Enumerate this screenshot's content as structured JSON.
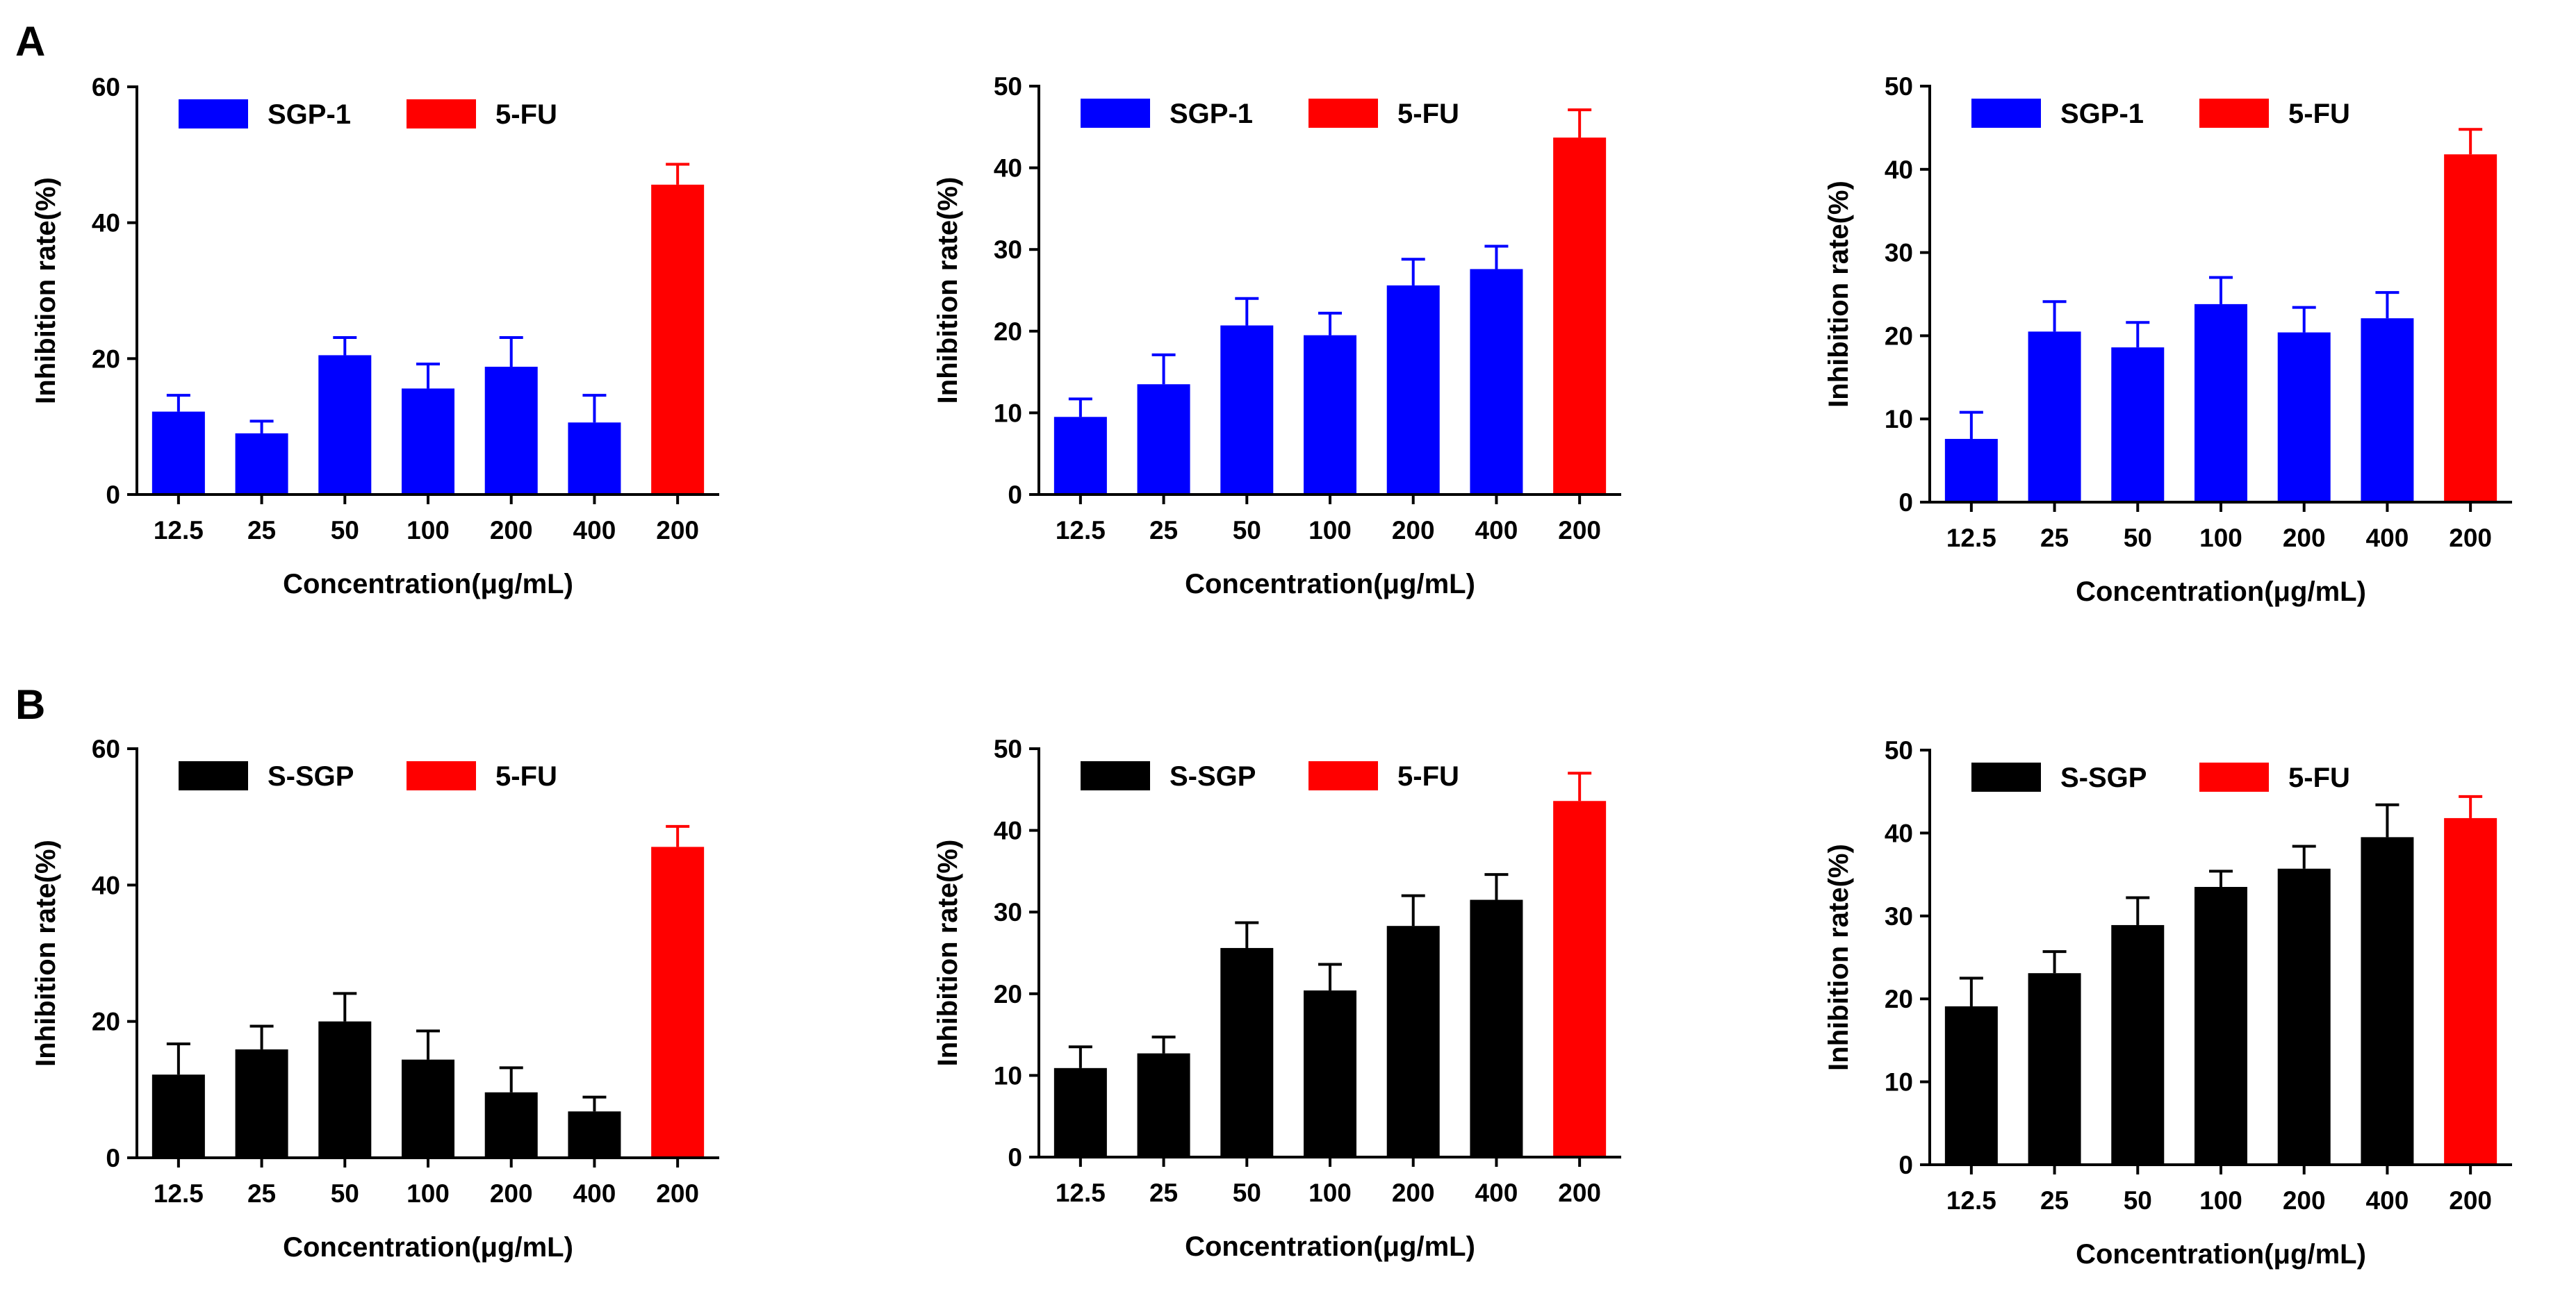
{
  "figure": {
    "panel_labels": [
      "A",
      "B"
    ]
  },
  "colors": {
    "sgp1": "#0000FF",
    "ssgp": "#000000",
    "fu": "#FF0000",
    "axis": "#000000"
  },
  "chart_data": [
    {
      "type": "bar",
      "row": 0,
      "col": 0,
      "categories": [
        "12.5",
        "25",
        "50",
        "100",
        "200",
        "400",
        "200"
      ],
      "series": [
        {
          "name": "SGP-1",
          "values": [
            12.2,
            9.0,
            20.5,
            15.6,
            18.8,
            10.6,
            null
          ],
          "errors": [
            2.4,
            1.8,
            2.6,
            3.6,
            4.3,
            4.0,
            null
          ],
          "color": "#0000FF"
        },
        {
          "name": "5-FU",
          "values": [
            null,
            null,
            null,
            null,
            null,
            null,
            45.6
          ],
          "errors": [
            null,
            null,
            null,
            null,
            null,
            null,
            3.0
          ],
          "color": "#FF0000"
        }
      ],
      "xlabel": "Concentration(μg/mL)",
      "ylabel": "Inhibition rate(%)",
      "ylim": [
        0,
        60
      ],
      "yticks": [
        0,
        20,
        40,
        60
      ],
      "legend": "top-left"
    },
    {
      "type": "bar",
      "row": 0,
      "col": 1,
      "categories": [
        "12.5",
        "25",
        "50",
        "100",
        "200",
        "400",
        "200"
      ],
      "series": [
        {
          "name": "SGP-1",
          "values": [
            9.5,
            13.5,
            20.7,
            19.5,
            25.6,
            27.6,
            null
          ],
          "errors": [
            2.2,
            3.6,
            3.3,
            2.7,
            3.2,
            2.8,
            null
          ],
          "color": "#0000FF"
        },
        {
          "name": "5-FU",
          "values": [
            null,
            null,
            null,
            null,
            null,
            null,
            43.7
          ],
          "errors": [
            null,
            null,
            null,
            null,
            null,
            null,
            3.4
          ],
          "color": "#FF0000"
        }
      ],
      "xlabel": "Concentration(μg/mL)",
      "ylabel": "Inhibition rate(%)",
      "ylim": [
        0,
        50
      ],
      "yticks": [
        0,
        10,
        20,
        30,
        40,
        50
      ],
      "legend": "top-left"
    },
    {
      "type": "bar",
      "row": 0,
      "col": 2,
      "categories": [
        "12.5",
        "25",
        "50",
        "100",
        "200",
        "400",
        "200"
      ],
      "series": [
        {
          "name": "SGP-1",
          "values": [
            7.6,
            20.5,
            18.6,
            23.8,
            20.4,
            22.1,
            null
          ],
          "errors": [
            3.2,
            3.6,
            3.0,
            3.2,
            3.0,
            3.1,
            null
          ],
          "color": "#0000FF"
        },
        {
          "name": "5-FU",
          "values": [
            null,
            null,
            null,
            null,
            null,
            null,
            41.8
          ],
          "errors": [
            null,
            null,
            null,
            null,
            null,
            null,
            3.0
          ],
          "color": "#FF0000"
        }
      ],
      "xlabel": "Concentration(μg/mL)",
      "ylabel": "Inhibition rate(%)",
      "ylim": [
        0,
        50
      ],
      "yticks": [
        0,
        10,
        20,
        30,
        40,
        50
      ],
      "legend": "top-left"
    },
    {
      "type": "bar",
      "row": 1,
      "col": 0,
      "categories": [
        "12.5",
        "25",
        "50",
        "100",
        "200",
        "400",
        "200"
      ],
      "series": [
        {
          "name": "S-SGP",
          "values": [
            12.2,
            15.9,
            20.0,
            14.4,
            9.6,
            6.8,
            null
          ],
          "errors": [
            4.5,
            3.4,
            4.1,
            4.2,
            3.6,
            2.1,
            null
          ],
          "color": "#000000"
        },
        {
          "name": "5-FU",
          "values": [
            null,
            null,
            null,
            null,
            null,
            null,
            45.6
          ],
          "errors": [
            null,
            null,
            null,
            null,
            null,
            null,
            3.0
          ],
          "color": "#FF0000"
        }
      ],
      "xlabel": "Concentration(μg/mL)",
      "ylabel": "Inhibition rate(%)",
      "ylim": [
        0,
        60
      ],
      "yticks": [
        0,
        20,
        40,
        60
      ],
      "legend": "top-left"
    },
    {
      "type": "bar",
      "row": 1,
      "col": 1,
      "categories": [
        "12.5",
        "25",
        "50",
        "100",
        "200",
        "400",
        "200"
      ],
      "series": [
        {
          "name": "S-SGP",
          "values": [
            10.9,
            12.7,
            25.6,
            20.4,
            28.3,
            31.5,
            null
          ],
          "errors": [
            2.6,
            2.0,
            3.1,
            3.2,
            3.7,
            3.1,
            null
          ],
          "color": "#000000"
        },
        {
          "name": "5-FU",
          "values": [
            null,
            null,
            null,
            null,
            null,
            null,
            43.6
          ],
          "errors": [
            null,
            null,
            null,
            null,
            null,
            null,
            3.4
          ],
          "color": "#FF0000"
        }
      ],
      "xlabel": "Concentration(μg/mL)",
      "ylabel": "Inhibition rate(%)",
      "ylim": [
        0,
        50
      ],
      "yticks": [
        0,
        10,
        20,
        30,
        40,
        50
      ],
      "legend": "top-left"
    },
    {
      "type": "bar",
      "row": 1,
      "col": 2,
      "categories": [
        "12.5",
        "25",
        "50",
        "100",
        "200",
        "400",
        "200"
      ],
      "series": [
        {
          "name": "S-SGP",
          "values": [
            19.1,
            23.1,
            28.9,
            33.5,
            35.7,
            39.5,
            null
          ],
          "errors": [
            3.4,
            2.6,
            3.3,
            1.9,
            2.7,
            3.9,
            null
          ],
          "color": "#000000"
        },
        {
          "name": "5-FU",
          "values": [
            null,
            null,
            null,
            null,
            null,
            null,
            41.8
          ],
          "errors": [
            null,
            null,
            null,
            null,
            null,
            null,
            2.6
          ],
          "color": "#FF0000"
        }
      ],
      "xlabel": "Concentration(μg/mL)",
      "ylabel": "Inhibition rate(%)",
      "ylim": [
        0,
        50
      ],
      "yticks": [
        0,
        10,
        20,
        30,
        40,
        50
      ],
      "legend": "top-left"
    }
  ]
}
